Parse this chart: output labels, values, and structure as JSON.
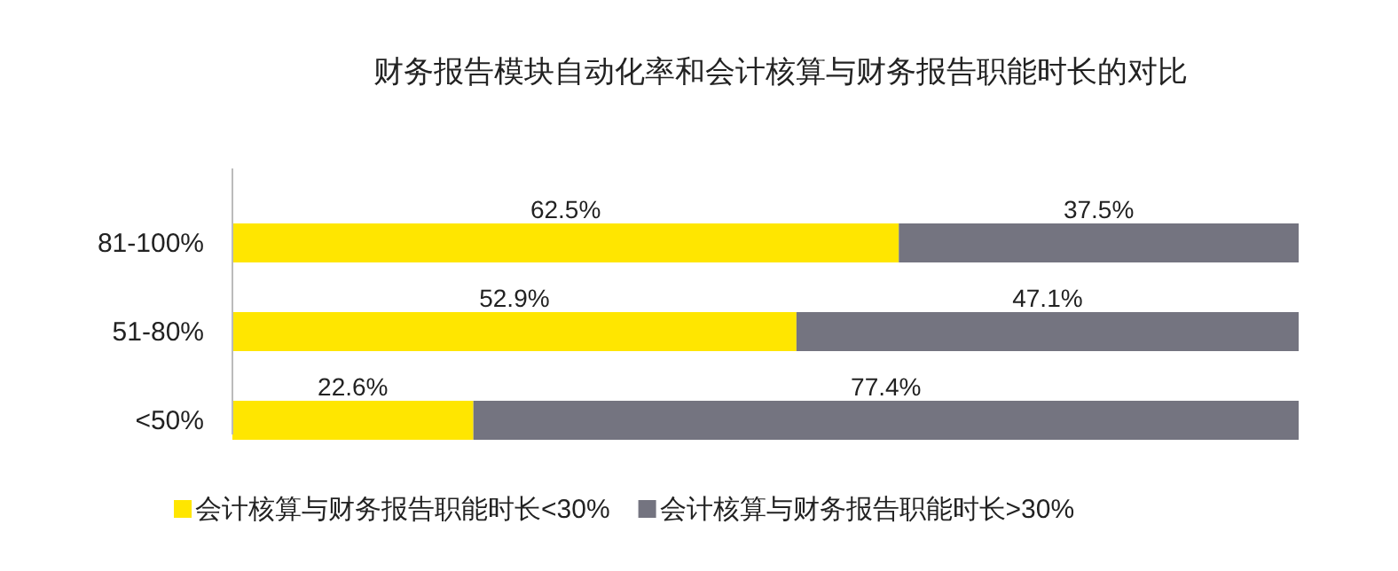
{
  "chart_data": {
    "type": "bar",
    "orientation": "horizontal",
    "stacked": true,
    "title": "财务报告模块自动化率和会计核算与财务报告职能时长的对比",
    "categories": [
      "81-100%",
      "51-80%",
      "<50%"
    ],
    "series": [
      {
        "name": "会计核算与财务报告职能时长<30%",
        "color": "#ffe600",
        "values": [
          62.5,
          52.9,
          22.6
        ],
        "value_labels": [
          "62.5%",
          "52.9%",
          "22.6%"
        ]
      },
      {
        "name": "会计核算与财务报告职能时长>30%",
        "color": "#747480",
        "values": [
          37.5,
          47.1,
          77.4
        ],
        "value_labels": [
          "37.5%",
          "47.1%",
          "77.4%"
        ]
      }
    ],
    "legend": "bottom"
  }
}
